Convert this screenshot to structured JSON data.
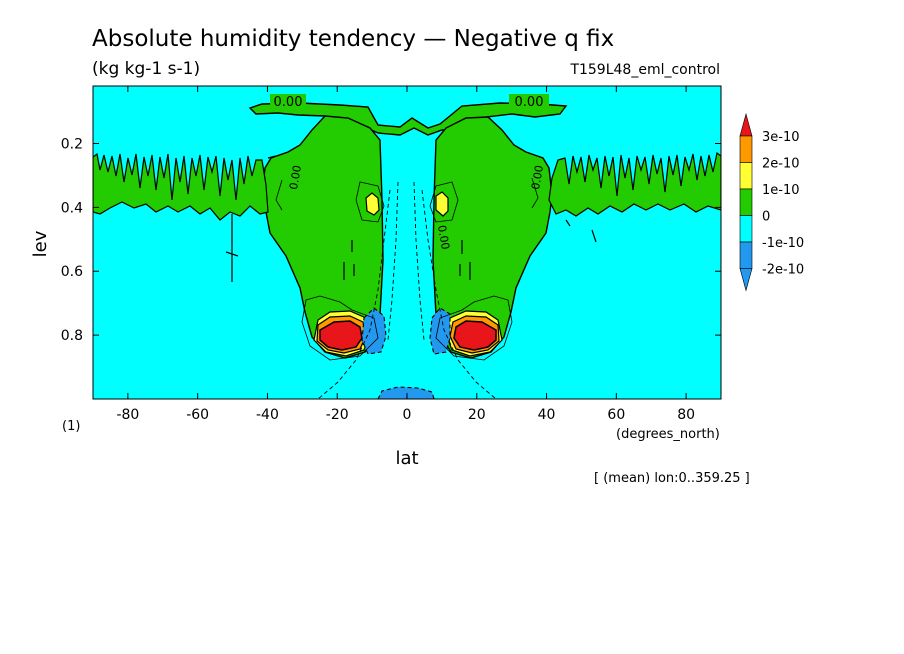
{
  "chart_data": {
    "type": "heatmap",
    "title": "Absolute humidity tendency — Negative q fix",
    "units": "(kg kg-1 s-1)",
    "experiment": "T159L48_eml_control",
    "xlabel": "lat",
    "x_units": "(degrees_north)",
    "ylabel": "lev",
    "y_units": "(1)",
    "footnote": "[ (mean) lon:0..359.25 ]",
    "xlim": [
      -90,
      90
    ],
    "ylim": [
      1.0,
      0.02
    ],
    "x_ticks": [
      -80,
      -60,
      -40,
      -20,
      0,
      20,
      40,
      60,
      80
    ],
    "y_ticks": [
      0.2,
      0.4,
      0.6,
      0.8
    ],
    "contour_labels": [
      "0.00",
      "0.00",
      "0.00",
      "0.00",
      "0.00"
    ],
    "colorbar": {
      "labels": [
        "3e-10",
        "2e-10",
        "1e-10",
        "0",
        "-1e-10",
        "-2e-10"
      ],
      "colors": [
        "#e8151b",
        "#ff9900",
        "#ffff33",
        "#22cc00",
        "#00ffff",
        "#2299ee",
        "#2299ee"
      ]
    },
    "colors": {
      "background": "#00ffff",
      "zero_to_1e10": "#22cc00",
      "1e10_to_2e10": "#ffff33",
      "2e10_to_3e10": "#ff9900",
      "above_3e10": "#e8151b",
      "below_minus_1e10": "#2299ee"
    }
  }
}
